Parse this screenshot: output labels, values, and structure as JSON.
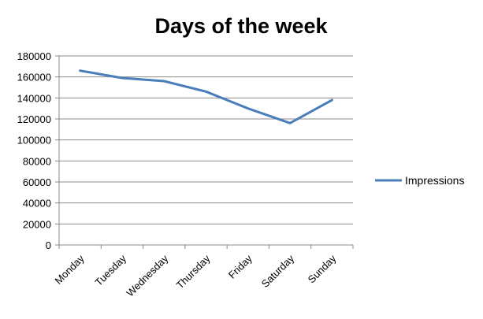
{
  "chart_data": {
    "type": "line",
    "title": "Days of the week",
    "xlabel": "",
    "ylabel": "",
    "categories": [
      "Monday",
      "Tuesday",
      "Wednesday",
      "Thursday",
      "Friday",
      "Saturday",
      "Sunday"
    ],
    "series": [
      {
        "name": "Impressions",
        "values": [
          166000,
          159000,
          156000,
          146000,
          130000,
          116000,
          138000
        ],
        "color": "#4a7ebb"
      }
    ],
    "ylim": [
      0,
      180000
    ],
    "ytick_step": 20000,
    "yticks": [
      "0",
      "20000",
      "40000",
      "60000",
      "80000",
      "100000",
      "120000",
      "140000",
      "160000",
      "180000"
    ],
    "grid": true,
    "legend": "right"
  }
}
